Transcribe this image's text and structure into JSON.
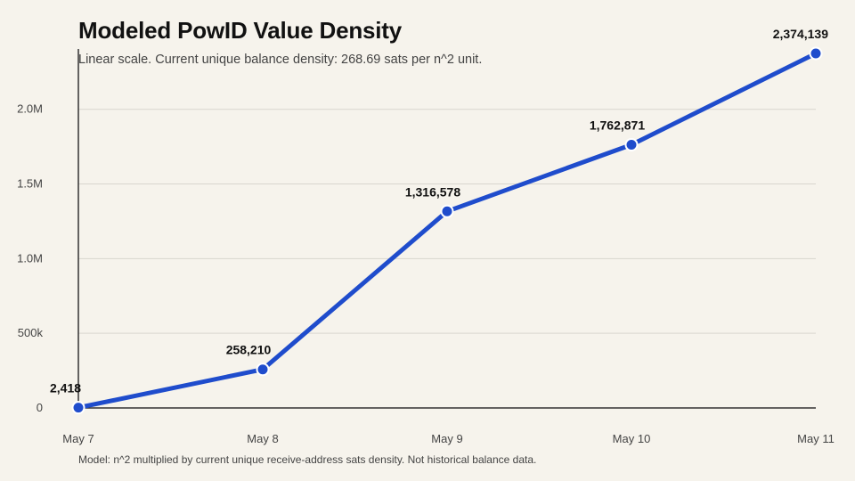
{
  "title": "Modeled PowID Value Density",
  "subtitle": "Linear scale. Current unique balance density: 268.69 sats per n^2 unit.",
  "footnote": "Model: n^2 multiplied by current unique receive-address sats density. Not historical balance data.",
  "colors": {
    "line": "#1f4ccc",
    "grid": "#d9d6cf",
    "axis": "#333333",
    "background": "#f6f3ec"
  },
  "chart_data": {
    "type": "line",
    "title": "Modeled PowID Value Density",
    "xlabel": "",
    "ylabel": "",
    "scale": "linear",
    "grid": true,
    "legend": "none",
    "categories": [
      "May 7",
      "May 8",
      "May 9",
      "May 10",
      "May 11"
    ],
    "series": [
      {
        "values": [
          2418,
          258210,
          1316578,
          1762871,
          2374139
        ]
      }
    ],
    "data_labels": [
      "2,418",
      "258,210",
      "1,316,578",
      "1,762,871",
      "2,374,139"
    ],
    "ylim": [
      0,
      2374139
    ],
    "yticks": [
      {
        "value": 0,
        "label": "0"
      },
      {
        "value": 500000,
        "label": "500k"
      },
      {
        "value": 1000000,
        "label": "1.0M"
      },
      {
        "value": 1500000,
        "label": "1.5M"
      },
      {
        "value": 2000000,
        "label": "2.0M"
      }
    ]
  }
}
